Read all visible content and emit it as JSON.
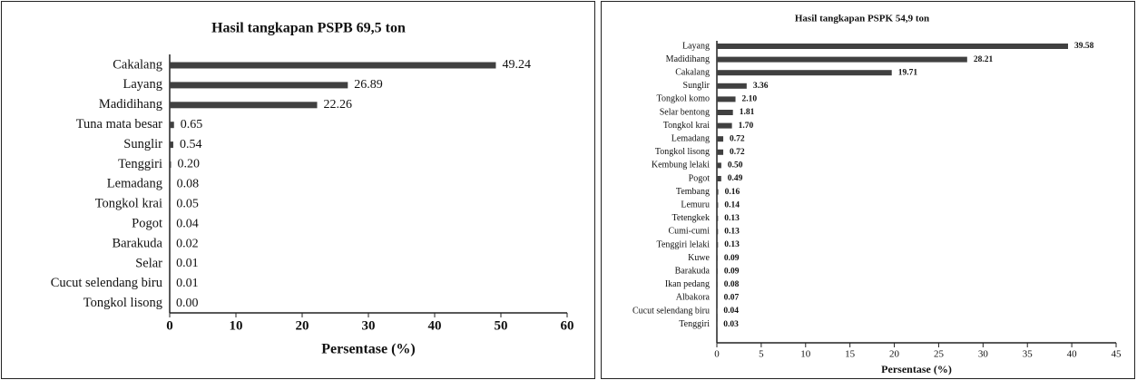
{
  "chart_data": [
    {
      "type": "hbar",
      "title": "Hasil tangkapan PSPB 69,5 ton",
      "categories": [
        "Cakalang",
        "Layang",
        "Madidihang",
        "Tuna mata besar",
        "Sunglir",
        "Tenggiri",
        "Lemadang",
        "Tongkol krai",
        "Pogot",
        "Barakuda",
        "Selar",
        "Cucut selendang biru",
        "Tongkol lisong"
      ],
      "values": [
        49.24,
        26.89,
        22.26,
        0.65,
        0.54,
        0.2,
        0.08,
        0.05,
        0.04,
        0.02,
        0.01,
        0.01,
        0.0
      ],
      "value_labels": [
        "49.24",
        "26.89",
        "22.26",
        "0.65",
        "0.54",
        "0.20",
        "0.08",
        "0.05",
        "0.04",
        "0.02",
        "0.01",
        "0.01",
        "0.00"
      ],
      "color": "#404040",
      "xlabel": "Persentase (%)",
      "xlim": [
        0,
        60
      ],
      "xticks": [
        0,
        10,
        20,
        30,
        40,
        50,
        60
      ]
    },
    {
      "type": "hbar",
      "title": "Hasil tangkapan PSPK 54,9 ton",
      "categories": [
        "Layang",
        "Madidihang",
        "Cakalang",
        "Sunglir",
        "Tongkol komo",
        "Selar bentong",
        "Tongkol krai",
        "Lemadang",
        "Tongkol lisong",
        "Kembung lelaki",
        "Pogot",
        "Tembang",
        "Lemuru",
        "Tetengkek",
        "Cumi-cumi",
        "Tenggiri lelaki",
        "Kuwe",
        "Barakuda",
        "Ikan pedang",
        "Albakora",
        "Cucut selendang biru",
        "Tenggiri"
      ],
      "values": [
        39.58,
        28.21,
        19.71,
        3.36,
        2.1,
        1.81,
        1.7,
        0.72,
        0.72,
        0.5,
        0.49,
        0.16,
        0.14,
        0.13,
        0.13,
        0.13,
        0.09,
        0.09,
        0.08,
        0.07,
        0.04,
        0.03
      ],
      "value_labels": [
        "39.58",
        "28.21",
        "19.71",
        "3.36",
        "2.10",
        "1.81",
        "1.70",
        "0.72",
        "0.72",
        "0.50",
        "0.49",
        "0.16",
        "0.14",
        "0.13",
        "0.13",
        "0.13",
        "0.09",
        "0.09",
        "0.08",
        "0.07",
        "0.04",
        "0.03"
      ],
      "color": "#404040",
      "xlabel": "Persentase (%)",
      "xlim": [
        0,
        45
      ],
      "xticks": [
        0,
        5,
        10,
        15,
        20,
        25,
        30,
        35,
        40,
        45
      ]
    }
  ]
}
